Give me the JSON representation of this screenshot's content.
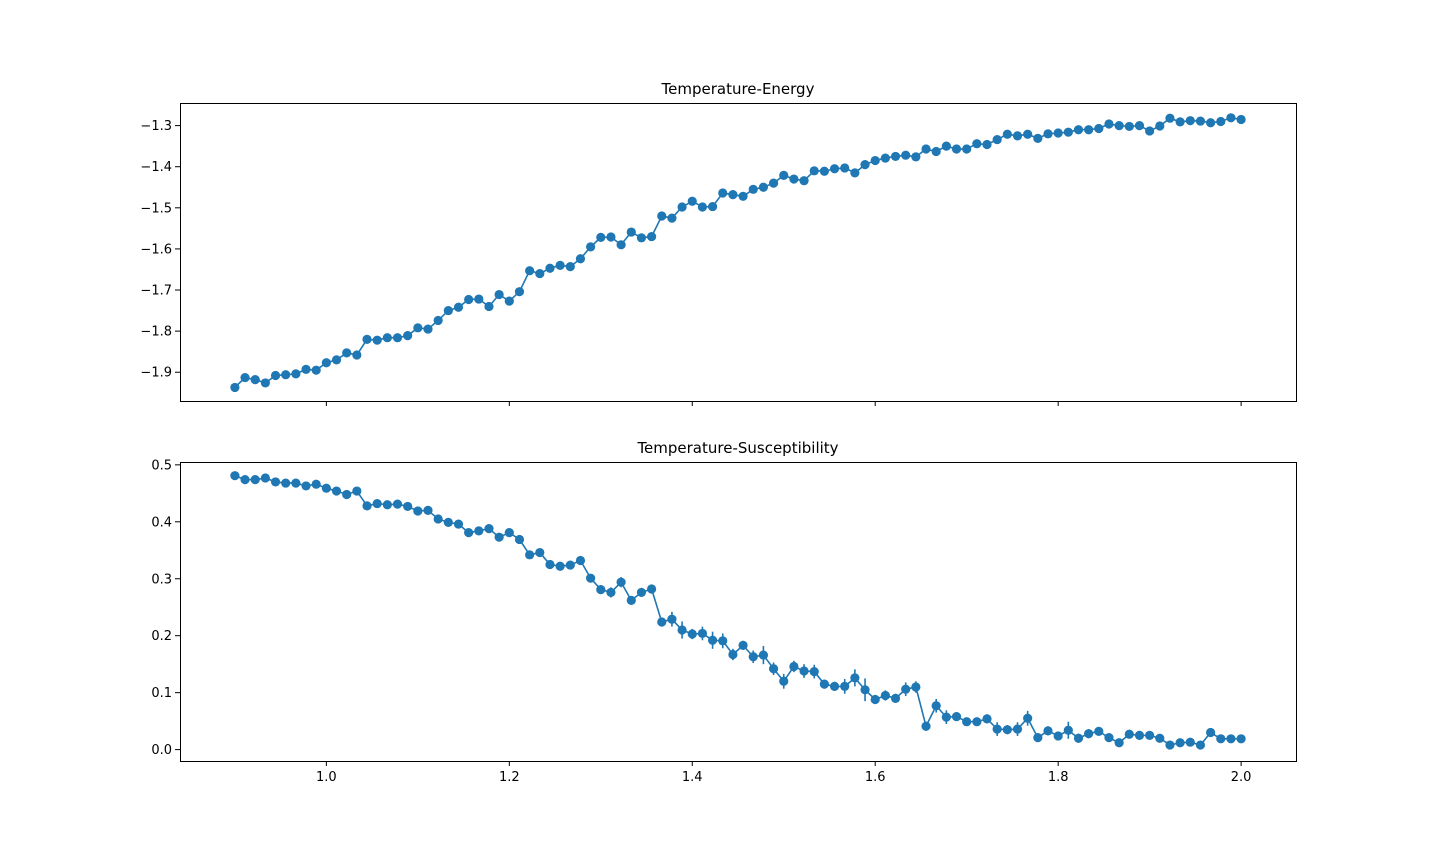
{
  "chart_data": [
    {
      "type": "line",
      "title": "Temperature-Energy",
      "xlabel": "",
      "ylabel": "",
      "xlim": [
        0.84,
        2.06
      ],
      "ylim": [
        -1.97,
        -1.245
      ],
      "xticks": [
        1.0,
        1.2,
        1.4,
        1.6,
        1.8,
        2.0
      ],
      "xtick_labels_visible": false,
      "yticks": [
        -1.9,
        -1.8,
        -1.7,
        -1.6,
        -1.5,
        -1.4,
        -1.3
      ],
      "ytick_labels": [
        "−1.9",
        "−1.8",
        "−1.7",
        "−1.6",
        "−1.5",
        "−1.4",
        "−1.3"
      ],
      "grid": false,
      "color": "#1f77b4",
      "x_start": 0.9,
      "x_step": 0.011111,
      "y": [
        -1.937,
        -1.913,
        -1.918,
        -1.926,
        -1.908,
        -1.906,
        -1.904,
        -1.893,
        -1.895,
        -1.877,
        -1.87,
        -1.853,
        -1.858,
        -1.82,
        -1.822,
        -1.816,
        -1.816,
        -1.811,
        -1.792,
        -1.795,
        -1.774,
        -1.75,
        -1.742,
        -1.723,
        -1.722,
        -1.74,
        -1.711,
        -1.727,
        -1.704,
        -1.653,
        -1.66,
        -1.647,
        -1.64,
        -1.643,
        -1.624,
        -1.595,
        -1.572,
        -1.571,
        -1.59,
        -1.559,
        -1.573,
        -1.57,
        -1.52,
        -1.525,
        -1.498,
        -1.484,
        -1.498,
        -1.497,
        -1.464,
        -1.468,
        -1.472,
        -1.455,
        -1.45,
        -1.44,
        -1.421,
        -1.43,
        -1.434,
        -1.41,
        -1.411,
        -1.405,
        -1.403,
        -1.415,
        -1.395,
        -1.385,
        -1.379,
        -1.375,
        -1.372,
        -1.376,
        -1.357,
        -1.363,
        -1.35,
        -1.357,
        -1.357,
        -1.344,
        -1.346,
        -1.334,
        -1.321,
        -1.325,
        -1.321,
        -1.331,
        -1.32,
        -1.318,
        -1.316,
        -1.31,
        -1.31,
        -1.307,
        -1.296,
        -1.3,
        -1.302,
        -1.3,
        -1.313,
        -1.301,
        -1.282,
        -1.291,
        -1.288,
        -1.289,
        -1.293,
        -1.29,
        -1.281,
        -1.285
      ],
      "yerr": [
        0.004,
        0.004,
        0.004,
        0.004,
        0.004,
        0.004,
        0.004,
        0.004,
        0.004,
        0.004,
        0.004,
        0.004,
        0.004,
        0.005,
        0.005,
        0.009,
        0.009,
        0.005,
        0.005,
        0.005,
        0.005,
        0.005,
        0.005,
        0.005,
        0.005,
        0.005,
        0.005,
        0.005,
        0.005,
        0.005,
        0.005,
        0.005,
        0.005,
        0.005,
        0.005,
        0.005,
        0.005,
        0.005,
        0.005,
        0.005,
        0.005,
        0.005,
        0.005,
        0.005,
        0.005,
        0.005,
        0.005,
        0.005,
        0.005,
        0.005,
        0.005,
        0.005,
        0.005,
        0.005,
        0.005,
        0.005,
        0.009,
        0.005,
        0.005,
        0.005,
        0.005,
        0.005,
        0.005,
        0.005,
        0.005,
        0.005,
        0.005,
        0.005,
        0.005,
        0.005,
        0.005,
        0.005,
        0.005,
        0.005,
        0.005,
        0.005,
        0.005,
        0.005,
        0.005,
        0.005,
        0.005,
        0.005,
        0.005,
        0.005,
        0.005,
        0.005,
        0.005,
        0.005,
        0.005,
        0.005,
        0.005,
        0.005,
        0.005,
        0.005,
        0.005,
        0.005,
        0.005,
        0.005,
        0.005,
        0.005
      ]
    },
    {
      "type": "line",
      "title": "Temperature-Susceptibility",
      "xlabel": "",
      "ylabel": "",
      "xlim": [
        0.84,
        2.06
      ],
      "ylim": [
        -0.02,
        0.505
      ],
      "xticks": [
        1.0,
        1.2,
        1.4,
        1.6,
        1.8,
        2.0
      ],
      "xtick_labels": [
        "1.0",
        "1.2",
        "1.4",
        "1.6",
        "1.8",
        "2.0"
      ],
      "yticks": [
        0.0,
        0.1,
        0.2,
        0.3,
        0.4,
        0.5
      ],
      "ytick_labels": [
        "0.0",
        "0.1",
        "0.2",
        "0.3",
        "0.4",
        "0.5"
      ],
      "grid": false,
      "color": "#1f77b4",
      "x_start": 0.9,
      "x_step": 0.011111,
      "y": [
        0.481,
        0.474,
        0.474,
        0.477,
        0.47,
        0.468,
        0.468,
        0.463,
        0.466,
        0.459,
        0.454,
        0.448,
        0.454,
        0.428,
        0.432,
        0.43,
        0.431,
        0.427,
        0.419,
        0.42,
        0.405,
        0.399,
        0.396,
        0.381,
        0.384,
        0.388,
        0.373,
        0.381,
        0.369,
        0.342,
        0.346,
        0.325,
        0.322,
        0.324,
        0.332,
        0.301,
        0.281,
        0.276,
        0.294,
        0.262,
        0.276,
        0.282,
        0.224,
        0.229,
        0.21,
        0.203,
        0.204,
        0.192,
        0.191,
        0.167,
        0.183,
        0.163,
        0.166,
        0.142,
        0.12,
        0.146,
        0.138,
        0.137,
        0.115,
        0.111,
        0.111,
        0.126,
        0.105,
        0.088,
        0.095,
        0.09,
        0.106,
        0.11,
        0.041,
        0.077,
        0.057,
        0.058,
        0.049,
        0.049,
        0.054,
        0.036,
        0.035,
        0.036,
        0.055,
        0.021,
        0.033,
        0.024,
        0.034,
        0.02,
        0.028,
        0.032,
        0.021,
        0.012,
        0.027,
        0.025,
        0.025,
        0.02,
        0.008,
        0.012,
        0.013,
        0.008,
        0.03,
        0.019,
        0.019,
        0.019
      ],
      "yerr": [
        0.004,
        0.004,
        0.004,
        0.004,
        0.004,
        0.004,
        0.004,
        0.004,
        0.004,
        0.004,
        0.004,
        0.004,
        0.004,
        0.005,
        0.005,
        0.005,
        0.005,
        0.005,
        0.005,
        0.005,
        0.005,
        0.005,
        0.005,
        0.005,
        0.005,
        0.005,
        0.006,
        0.006,
        0.006,
        0.006,
        0.006,
        0.006,
        0.006,
        0.006,
        0.006,
        0.006,
        0.008,
        0.009,
        0.009,
        0.006,
        0.008,
        0.008,
        0.008,
        0.013,
        0.015,
        0.009,
        0.012,
        0.015,
        0.013,
        0.01,
        0.008,
        0.011,
        0.016,
        0.011,
        0.013,
        0.01,
        0.012,
        0.012,
        0.008,
        0.008,
        0.013,
        0.015,
        0.02,
        0.008,
        0.009,
        0.008,
        0.012,
        0.01,
        0.008,
        0.012,
        0.012,
        0.008,
        0.006,
        0.006,
        0.008,
        0.012,
        0.008,
        0.012,
        0.013,
        0.006,
        0.008,
        0.006,
        0.015,
        0.008,
        0.008,
        0.006,
        0.006,
        0.006,
        0.006,
        0.008,
        0.006,
        0.006,
        0.006,
        0.006,
        0.006,
        0.006,
        0.006,
        0.006,
        0.006,
        0.006
      ]
    }
  ]
}
